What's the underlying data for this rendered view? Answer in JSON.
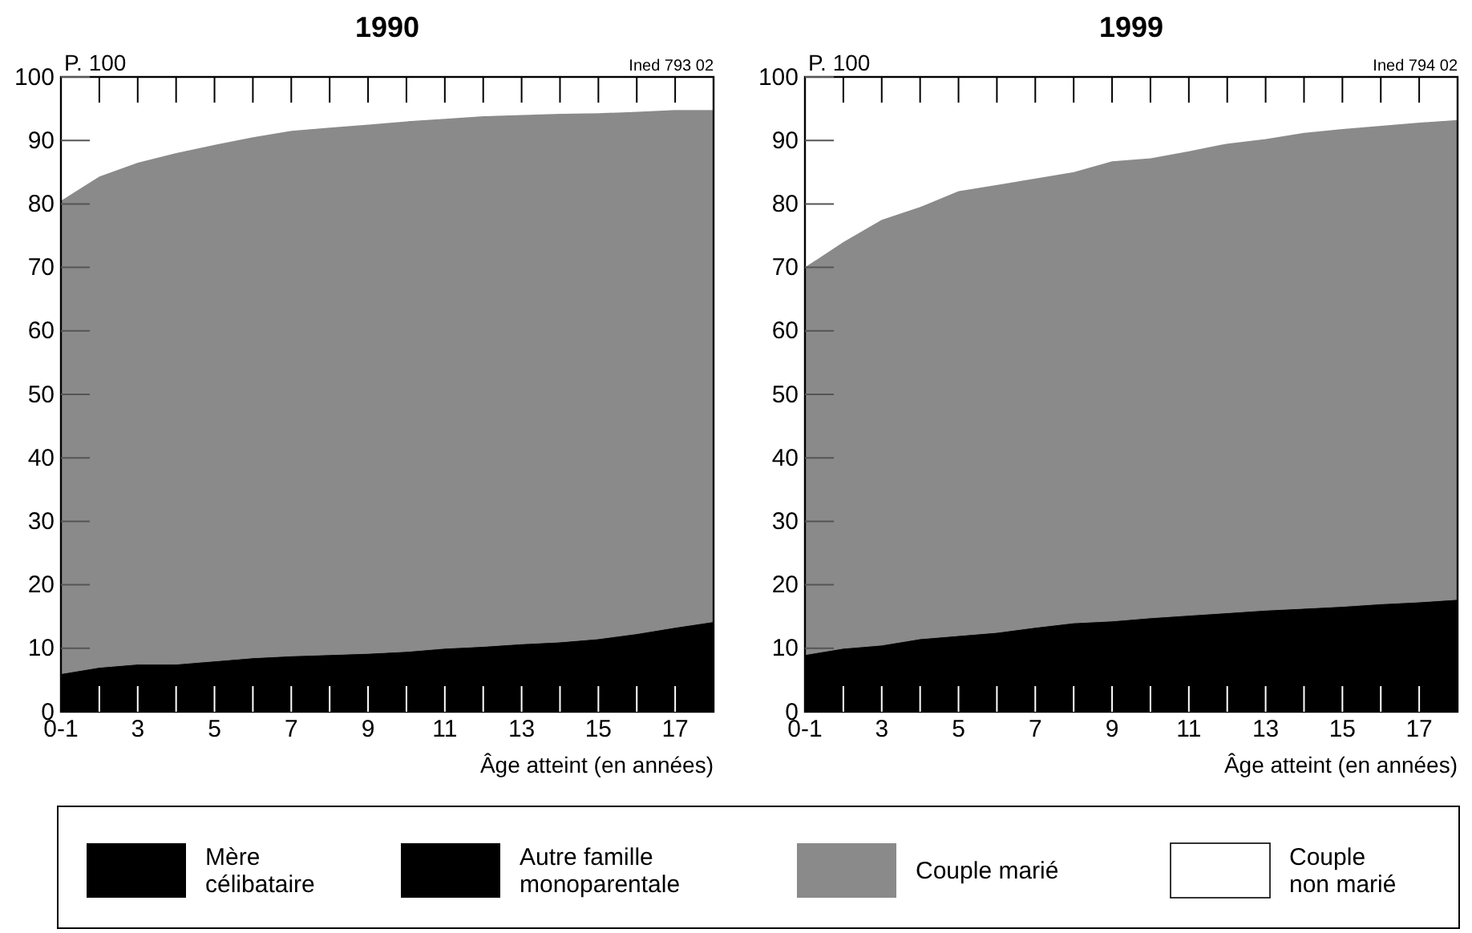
{
  "chart_data": [
    {
      "type": "area",
      "stacked": true,
      "title": "1990",
      "ylabel": "P. 100",
      "xlabel": "Âge atteint (en années)",
      "annotations": [
        "Ined 793 02"
      ],
      "x": [
        1,
        2,
        3,
        4,
        5,
        6,
        7,
        8,
        9,
        10,
        11,
        12,
        13,
        14,
        15,
        16,
        17,
        18
      ],
      "xlim": [
        1,
        18
      ],
      "xticks": [
        {
          "value": 1,
          "label": "0-1"
        },
        {
          "value": 2,
          "label": null
        },
        3,
        {
          "value": 4,
          "label": null
        },
        5,
        {
          "value": 6,
          "label": null
        },
        7,
        {
          "value": 8,
          "label": null
        },
        9,
        {
          "value": 10,
          "label": null
        },
        11,
        {
          "value": 12,
          "label": null
        },
        13,
        {
          "value": 14,
          "label": null
        },
        15,
        {
          "value": 16,
          "label": null
        },
        17
      ],
      "ylim": [
        0,
        100
      ],
      "yticks": [
        0,
        10,
        20,
        30,
        40,
        50,
        60,
        70,
        80,
        90,
        100
      ],
      "legend": "bottom",
      "series": [
        {
          "name": "Mère célibataire",
          "color": "#000000",
          "values": [
            6,
            7,
            7.5,
            7.5,
            8,
            8.5,
            8.8,
            9,
            9.2,
            9.5,
            10,
            10.3,
            10.7,
            11,
            11.5,
            12.3,
            13.3,
            14.2
          ]
        },
        {
          "name": "Autre famille monoparentale",
          "color": "#000000",
          "values": [
            null,
            null,
            null,
            null,
            null,
            null,
            null,
            null,
            null,
            null,
            null,
            null,
            null,
            null,
            null,
            null,
            null,
            null
          ]
        },
        {
          "name": "Couple marié",
          "color": "#8a8a8a",
          "values": [
            74.5,
            77.3,
            79,
            80.5,
            81.3,
            82,
            82.7,
            83,
            83.3,
            83.5,
            83.4,
            83.5,
            83.3,
            83.2,
            82.8,
            82.2,
            81.5,
            80.6
          ]
        },
        {
          "name": "Couple non marié",
          "color": "#ffffff",
          "values": [
            19.5,
            15.7,
            13.5,
            12,
            10.7,
            9.5,
            8.5,
            8,
            7.5,
            7,
            6.6,
            6.2,
            6,
            5.8,
            5.7,
            5.5,
            5.2,
            5.2
          ]
        }
      ]
    },
    {
      "type": "area",
      "stacked": true,
      "title": "1999",
      "ylabel": "P. 100",
      "xlabel": "Âge atteint (en années)",
      "annotations": [
        "Ined 794 02"
      ],
      "x": [
        1,
        2,
        3,
        4,
        5,
        6,
        7,
        8,
        9,
        10,
        11,
        12,
        13,
        14,
        15,
        16,
        17,
        18
      ],
      "xlim": [
        1,
        18
      ],
      "xticks": [
        {
          "value": 1,
          "label": "0-1"
        },
        {
          "value": 2,
          "label": null
        },
        3,
        {
          "value": 4,
          "label": null
        },
        5,
        {
          "value": 6,
          "label": null
        },
        7,
        {
          "value": 8,
          "label": null
        },
        9,
        {
          "value": 10,
          "label": null
        },
        11,
        {
          "value": 12,
          "label": null
        },
        13,
        {
          "value": 14,
          "label": null
        },
        15,
        {
          "value": 16,
          "label": null
        },
        17
      ],
      "ylim": [
        0,
        100
      ],
      "yticks": [
        0,
        10,
        20,
        30,
        40,
        50,
        60,
        70,
        80,
        90,
        100
      ],
      "series": [
        {
          "color": "#000000",
          "values": [
            9,
            10,
            10.5,
            11.5,
            12,
            12.5,
            13.3,
            14,
            14.3,
            14.8,
            15.2,
            15.6,
            16,
            16.3,
            16.6,
            17,
            17.3,
            17.7
          ]
        },
        {
          "values": [
            null,
            null,
            null,
            null,
            null,
            null,
            null,
            null,
            null,
            null,
            null,
            null,
            null,
            null,
            null,
            null,
            null,
            null
          ]
        },
        {
          "color": "#8a8a8a",
          "values": [
            61,
            64,
            67,
            68,
            70,
            70.5,
            70.7,
            71,
            72.4,
            72.4,
            73.1,
            73.9,
            74.2,
            74.9,
            75.2,
            75.3,
            75.5,
            75.5
          ]
        },
        {
          "color": "#ffffff",
          "values": [
            30,
            26,
            22.5,
            20.5,
            18,
            17,
            16,
            15,
            13.3,
            12.8,
            11.7,
            10.5,
            9.8,
            8.8,
            8.2,
            7.7,
            7.2,
            6.8
          ]
        }
      ]
    }
  ]
}
